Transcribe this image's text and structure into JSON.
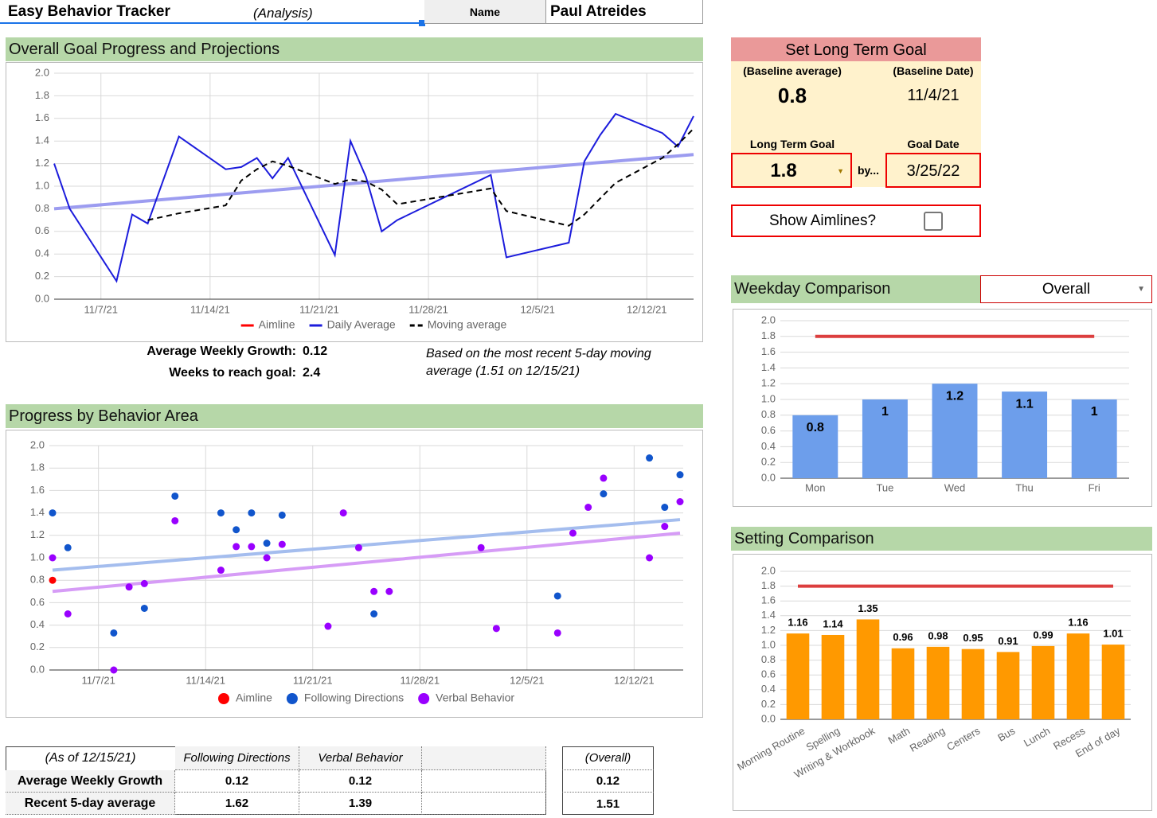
{
  "header": {
    "title": "Easy Behavior Tracker",
    "subtitle": "(Analysis)",
    "name_label": "Name",
    "name": "Paul Atreides"
  },
  "summary": {
    "growth_label": "Average Weekly Growth:",
    "growth": 0.12,
    "weeks_label": "Weeks to reach goal:",
    "weeks": 2.4,
    "note": "Based on the most recent 5-day moving average (1.51 on 12/15/21)"
  },
  "goal_panel": {
    "title": "Set Long Term Goal",
    "baseline_average_label": "(Baseline average)",
    "baseline_average": 0.8,
    "baseline_date_label": "(Baseline Date)",
    "baseline_date": "11/4/21",
    "goal_label": "Long Term Goal",
    "goal": 1.8,
    "by_label": "by...",
    "goal_date_label": "Goal Date",
    "goal_date": "3/25/22",
    "aimlines_label": "Show Aimlines?",
    "aimlines_checked": false
  },
  "weekday_selector": "Overall",
  "table": {
    "as_of": "(As of 12/15/21)",
    "columns": [
      "Following Directions",
      "Verbal Behavior"
    ],
    "overall_header": "(Overall)",
    "rows": [
      {
        "label": "Average Weekly Growth",
        "values": [
          0.12,
          0.12
        ],
        "overall": 0.12
      },
      {
        "label": "Recent 5-day average",
        "values": [
          1.62,
          1.39
        ],
        "overall": 1.51
      }
    ]
  },
  "chart_data": [
    {
      "type": "line",
      "title": "Overall Goal Progress and Projections",
      "grid": true,
      "legend": "bottom",
      "xlim": [
        "11/4/21",
        "12/15/21"
      ],
      "xticks": [
        "11/7/21",
        "11/14/21",
        "11/21/21",
        "11/28/21",
        "12/5/21",
        "12/12/21"
      ],
      "ylim": [
        0,
        2
      ],
      "yticks": [
        {
          "value": 0,
          "label": "0.0"
        },
        0.2,
        0.4,
        0.6,
        0.8,
        {
          "value": 1,
          "label": "1.0"
        },
        1.2,
        1.4,
        1.6,
        1.8,
        {
          "value": 2,
          "label": "2.0"
        }
      ],
      "x": [
        "11/4/21",
        "11/5/21",
        "11/8/21",
        "11/9/21",
        "11/10/21",
        "11/12/21",
        "11/15/21",
        "11/16/21",
        "11/17/21",
        "11/18/21",
        "11/19/21",
        "11/22/21",
        "11/23/21",
        "11/24/21",
        "11/25/21",
        "11/26/21",
        "12/2/21",
        "12/3/21",
        "12/7/21",
        "12/8/21",
        "12/9/21",
        "12/10/21",
        "12/13/21",
        "12/14/21",
        "12/15/21"
      ],
      "series": [
        {
          "name": "Aimline",
          "color": "#ff0000",
          "values": [
            null,
            null,
            null,
            null,
            null,
            null,
            null,
            null,
            null,
            null,
            null,
            null,
            null,
            null,
            null,
            null,
            null,
            null,
            null,
            null,
            null,
            null,
            null,
            null,
            null
          ]
        },
        {
          "name": "Daily Average",
          "color": "#1c1cdc",
          "values": [
            1.2,
            0.8,
            0.16,
            0.75,
            0.67,
            1.44,
            1.15,
            1.17,
            1.25,
            1.07,
            1.25,
            0.39,
            1.4,
            1.08,
            0.6,
            0.7,
            1.1,
            0.37,
            0.5,
            1.22,
            1.45,
            1.64,
            1.47,
            1.35,
            1.62
          ]
        },
        {
          "name": "Moving average",
          "color": "#000000",
          "dashed": true,
          "values": [
            null,
            null,
            null,
            null,
            0.7,
            0.76,
            0.83,
            1.05,
            1.15,
            1.22,
            1.18,
            1.02,
            1.06,
            1.04,
            0.97,
            0.84,
            0.98,
            0.78,
            0.65,
            0.75,
            0.89,
            1.03,
            1.25,
            1.37,
            1.51
          ]
        }
      ],
      "trendlines": [
        {
          "color": "#9c9cf0",
          "values": [
            0.8,
            1.28
          ]
        }
      ]
    },
    {
      "type": "scatter",
      "title": "Progress by Behavior Area",
      "grid": true,
      "legend": "bottom",
      "xlim": [
        "11/4/21",
        "12/15/21"
      ],
      "xticks": [
        "11/7/21",
        "11/14/21",
        "11/21/21",
        "11/28/21",
        "12/5/21",
        "12/12/21"
      ],
      "ylim": [
        0,
        2
      ],
      "yticks": [
        {
          "value": 0,
          "label": "0.0"
        },
        0.2,
        0.4,
        0.6,
        0.8,
        {
          "value": 1,
          "label": "1.0"
        },
        1.2,
        1.4,
        1.6,
        1.8,
        {
          "value": 2,
          "label": "2.0"
        }
      ],
      "series": [
        {
          "name": "Aimline",
          "color": "#ff0000",
          "x": [
            "11/4/21"
          ],
          "values": [
            0.8
          ]
        },
        {
          "name": "Following Directions",
          "color": "#1155cc",
          "x": [
            "11/4/21",
            "11/5/21",
            "11/8/21",
            "11/10/21",
            "11/12/21",
            "11/15/21",
            "11/16/21",
            "11/17/21",
            "11/18/21",
            "11/19/21",
            "11/25/21",
            "12/7/21",
            "12/10/21",
            "12/13/21",
            "12/14/21",
            "12/15/21"
          ],
          "values": [
            1.4,
            1.09,
            0.33,
            0.55,
            1.55,
            1.4,
            1.25,
            1.4,
            1.13,
            1.38,
            0.5,
            0.66,
            1.57,
            1.89,
            1.45,
            1.74
          ]
        },
        {
          "name": "Verbal Behavior",
          "color": "#9900ff",
          "x": [
            "11/4/21",
            "11/5/21",
            "11/8/21",
            "11/9/21",
            "11/10/21",
            "11/12/21",
            "11/15/21",
            "11/16/21",
            "11/17/21",
            "11/18/21",
            "11/19/21",
            "11/22/21",
            "11/23/21",
            "11/24/21",
            "11/25/21",
            "11/26/21",
            "12/2/21",
            "12/3/21",
            "12/7/21",
            "12/8/21",
            "12/9/21",
            "12/10/21",
            "12/13/21",
            "12/14/21",
            "12/15/21"
          ],
          "values": [
            1,
            0.5,
            0,
            0.74,
            0.77,
            1.33,
            0.89,
            1.1,
            1.1,
            1,
            1.12,
            0.39,
            1.4,
            1.09,
            0.7,
            0.7,
            1.09,
            0.37,
            0.33,
            1.22,
            1.45,
            1.71,
            1,
            1.28,
            1.5
          ]
        }
      ],
      "trendlines": [
        {
          "color": "#a4bdee",
          "values": [
            0.89,
            1.34
          ]
        },
        {
          "color": "#d69cf6",
          "values": [
            0.7,
            1.22
          ]
        }
      ]
    },
    {
      "type": "bar",
      "title": "Weekday Comparison",
      "grid": true,
      "label_position": "inside",
      "color": "#6d9eeb",
      "ylim": [
        0,
        2
      ],
      "yticks": [
        {
          "value": 0,
          "label": "0.0"
        },
        0.2,
        0.4,
        0.6,
        0.8,
        {
          "value": 1,
          "label": "1.0"
        },
        1.2,
        1.4,
        1.6,
        1.8,
        {
          "value": 2,
          "label": "2.0"
        }
      ],
      "categories": [
        "Mon",
        "Tue",
        "Wed",
        "Thu",
        "Fri"
      ],
      "values": [
        0.8,
        1,
        1.2,
        1.1,
        1
      ],
      "goal_line": {
        "value": 1.8,
        "color": "#dc3e3e"
      }
    },
    {
      "type": "bar",
      "title": "Setting Comparison",
      "grid": true,
      "label_position": "above",
      "rotate_labels": true,
      "color": "#ff9900",
      "ylim": [
        0,
        2
      ],
      "yticks": [
        {
          "value": 0,
          "label": "0.0"
        },
        0.2,
        0.4,
        0.6,
        0.8,
        {
          "value": 1,
          "label": "1.0"
        },
        1.2,
        1.4,
        1.6,
        1.8,
        {
          "value": 2,
          "label": "2.0"
        }
      ],
      "categories": [
        "Morning Routine",
        "Spelling",
        "Writing & Workbook",
        "Math",
        "Reading",
        "Centers",
        "Bus",
        "Lunch",
        "Recess",
        "End of day"
      ],
      "values": [
        1.16,
        1.14,
        1.35,
        0.96,
        0.98,
        0.95,
        0.91,
        0.99,
        1.16,
        1.01
      ],
      "goal_line": {
        "value": 1.8,
        "color": "#dc3e3e"
      }
    }
  ]
}
